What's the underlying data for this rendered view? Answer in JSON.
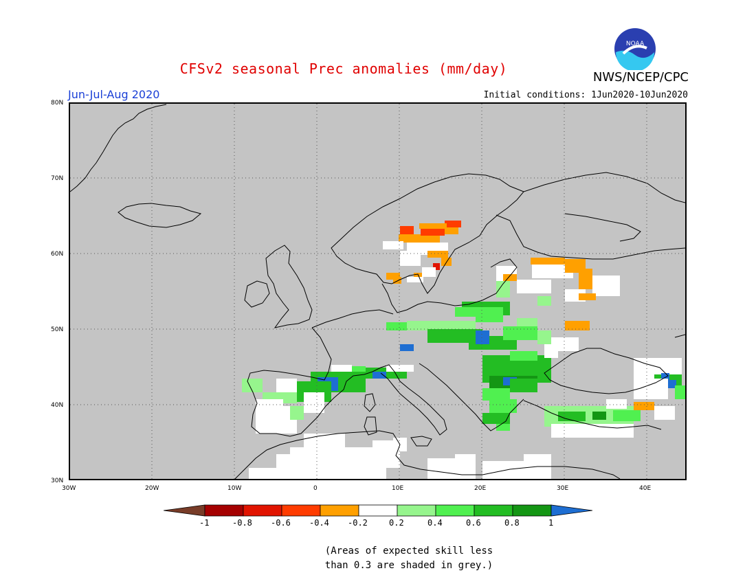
{
  "header": {
    "title": "CFSv2 seasonal Prec anomalies (mm/day)",
    "agency": "NWS/NCEP/CPC",
    "logo_text": "NOAA",
    "season": "Jun-Jul-Aug 2020",
    "initial_conditions": "Initial conditions: 1Jun2020-10Jun2020"
  },
  "map": {
    "lon_range": [
      -30,
      45
    ],
    "lat_range": [
      30,
      80
    ],
    "lat_labels": [
      "80N",
      "70N",
      "60N",
      "50N",
      "40N",
      "30N"
    ],
    "lon_labels": [
      "30W",
      "20W",
      "10W",
      "0",
      "10E",
      "20E",
      "30E",
      "40E"
    ],
    "colors": {
      "grey": "#c4c4c4",
      "white": "#ffffff",
      "lt_green": "#96f58d",
      "green": "#50f050",
      "md_green": "#23bd23",
      "dk_green": "#149614",
      "blue": "#1e6ed2",
      "orange": "#ffa000",
      "red_orange": "#ff3c00",
      "red": "#e11400",
      "dk_red": "#a50000",
      "brown": "#783c28"
    }
  },
  "legend": {
    "colors": [
      "#783c28",
      "#a50000",
      "#e11400",
      "#ff3c00",
      "#ffa000",
      "#ffffff",
      "#96f58d",
      "#50f050",
      "#23bd23",
      "#149614",
      "#1e6ed2"
    ],
    "labels": [
      "-1",
      "-0.8",
      "-0.6",
      "-0.4",
      "-0.2",
      "0.2",
      "0.4",
      "0.6",
      "0.8",
      "1"
    ]
  },
  "note": {
    "line1": "(Areas of expected skill less",
    "line2": "than 0.3 are shaded in grey.)"
  }
}
